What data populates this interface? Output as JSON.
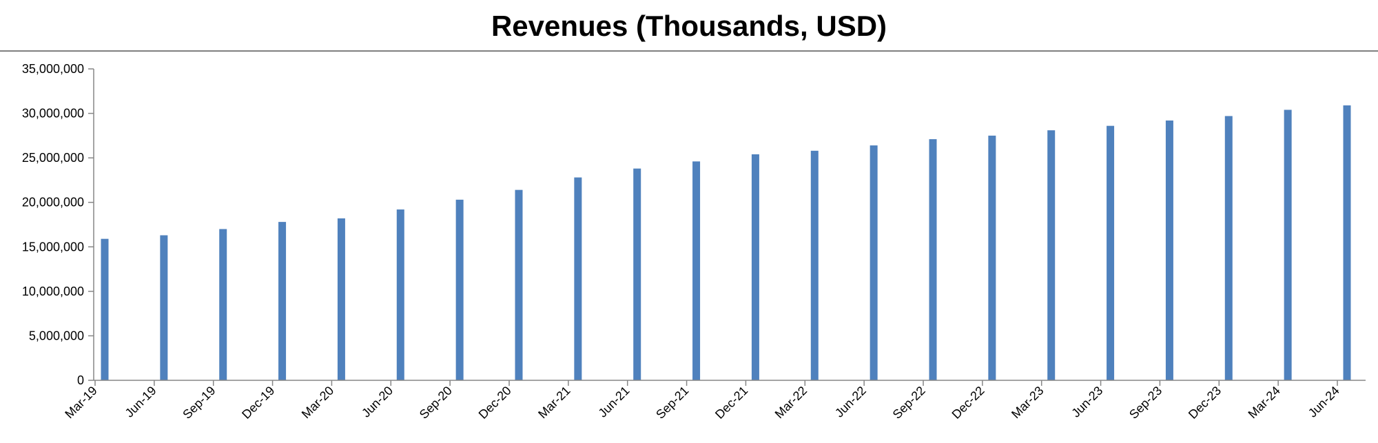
{
  "chart_data": {
    "type": "bar",
    "title": "Revenues (Thousands, USD)",
    "xlabel": "",
    "ylabel": "",
    "ylim": [
      0,
      35000000
    ],
    "yticks": [
      0,
      5000000,
      10000000,
      15000000,
      20000000,
      25000000,
      30000000,
      35000000
    ],
    "ytick_labels": [
      "0",
      "5,000,000",
      "10,000,000",
      "15,000,000",
      "20,000,000",
      "25,000,000",
      "30,000,000",
      "35,000,000"
    ],
    "grid": false,
    "legend": "none",
    "bar_color": "#4F81BD",
    "categories": [
      "Mar-19",
      "Jun-19",
      "Sep-19",
      "Dec-19",
      "Mar-20",
      "Jun-20",
      "Sep-20",
      "Dec-20",
      "Mar-21",
      "Jun-21",
      "Sep-21",
      "Dec-21",
      "Mar-22",
      "Jun-22",
      "Sep-22",
      "Dec-22",
      "Mar-23",
      "Jun-23",
      "Sep-23",
      "Dec-23",
      "Mar-24",
      "Jun-24"
    ],
    "values": [
      15900000,
      16300000,
      17000000,
      17800000,
      18200000,
      19200000,
      20300000,
      21400000,
      22800000,
      23800000,
      24600000,
      25400000,
      25800000,
      26400000,
      27100000,
      27500000,
      28100000,
      28600000,
      29200000,
      29700000,
      30400000,
      30900000
    ]
  }
}
